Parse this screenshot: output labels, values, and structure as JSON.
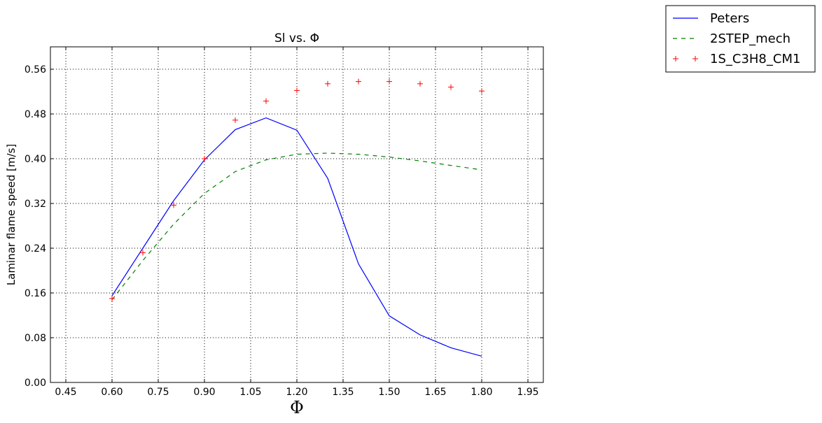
{
  "chart_data": {
    "type": "line",
    "title": "Sl vs. Φ",
    "xlabel": "Φ",
    "ylabel": "Laminar flame speed [m/s]",
    "xlim": [
      0.4,
      2.0
    ],
    "ylim": [
      0.0,
      0.6
    ],
    "xticks": [
      "0.45",
      "0.60",
      "0.75",
      "0.90",
      "1.05",
      "1.20",
      "1.35",
      "1.50",
      "1.65",
      "1.80",
      "1.95"
    ],
    "yticks": [
      "0.00",
      "0.08",
      "0.16",
      "0.24",
      "0.32",
      "0.40",
      "0.48",
      "0.56"
    ],
    "grid": true,
    "legend_position": "top-right outside",
    "series": [
      {
        "name": "Peters",
        "style": "solid",
        "color": "#0000ff",
        "x": [
          0.6,
          0.7,
          0.8,
          0.9,
          1.0,
          1.1,
          1.2,
          1.3,
          1.4,
          1.5,
          1.6,
          1.7,
          1.8
        ],
        "y": [
          0.155,
          0.24,
          0.325,
          0.398,
          0.452,
          0.473,
          0.451,
          0.365,
          0.212,
          0.119,
          0.085,
          0.062,
          0.047
        ]
      },
      {
        "name": "2STEP_mech",
        "style": "dashed",
        "color": "#008000",
        "x": [
          0.6,
          0.7,
          0.8,
          0.9,
          1.0,
          1.1,
          1.2,
          1.3,
          1.4,
          1.5,
          1.6,
          1.7,
          1.8
        ],
        "y": [
          0.148,
          0.218,
          0.283,
          0.338,
          0.377,
          0.398,
          0.408,
          0.41,
          0.408,
          0.403,
          0.396,
          0.388,
          0.38
        ]
      },
      {
        "name": "1S_C3H8_CM1",
        "style": "marker-plus",
        "color": "#ff0000",
        "x": [
          0.6,
          0.7,
          0.8,
          0.9,
          1.0,
          1.1,
          1.2,
          1.3,
          1.4,
          1.5,
          1.6,
          1.7,
          1.8
        ],
        "y": [
          0.15,
          0.232,
          0.317,
          0.4,
          0.469,
          0.503,
          0.522,
          0.534,
          0.538,
          0.538,
          0.534,
          0.528,
          0.521
        ]
      }
    ]
  }
}
